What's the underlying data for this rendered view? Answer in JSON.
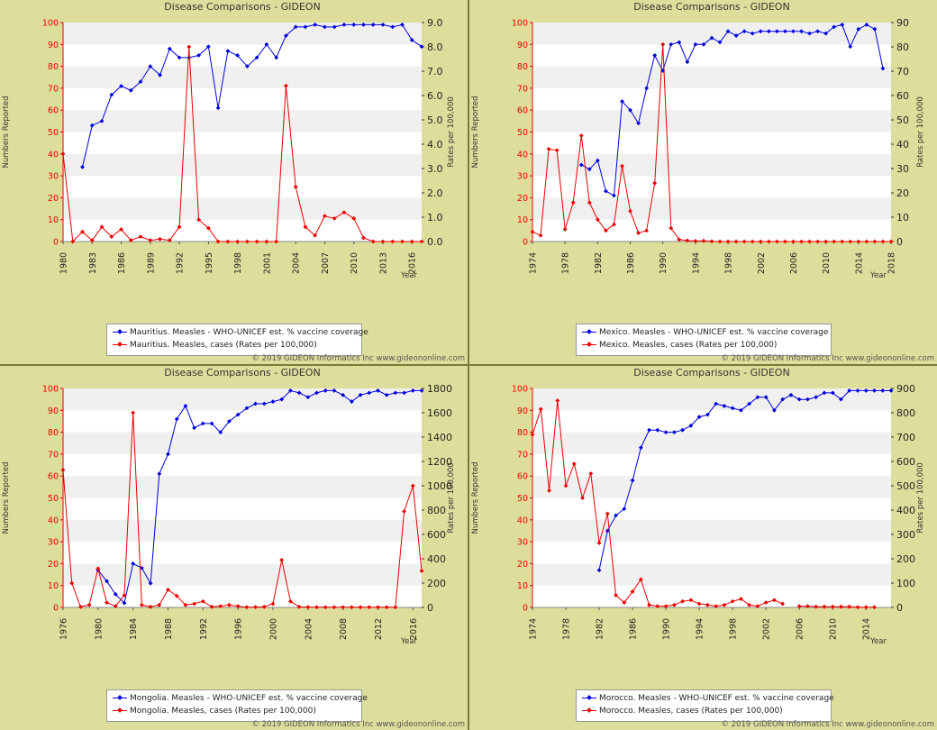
{
  "page": {
    "footer": "© 2019 GIDEON Informatics Inc www.gideononline.com"
  },
  "colors": {
    "coverage": "#0000dd",
    "cases": "#ee0000",
    "panel_bg": "#dede9c",
    "plot_band": "#f0f0f0"
  },
  "chart_data": [
    {
      "type": "line",
      "title": "Disease Comparisons - GIDEON",
      "ylabel_left": "Numbers Reported",
      "ylabel_right": "Rates per 100,000",
      "xlabel": "Year",
      "xlim": [
        1980,
        2017
      ],
      "ylim_left": [
        0,
        100
      ],
      "ylim_right": [
        0,
        9
      ],
      "xticks": [
        1980,
        1983,
        1986,
        1989,
        1992,
        1995,
        1998,
        2001,
        2004,
        2007,
        2010,
        2013,
        2016
      ],
      "yticks_left": [
        0,
        10,
        20,
        30,
        40,
        50,
        60,
        70,
        80,
        90,
        100
      ],
      "yticks_right": [
        "0.0",
        "1.0",
        "2.0",
        "3.0",
        "4.0",
        "5.0",
        "6.0",
        "7.0",
        "8.0",
        "9.0"
      ],
      "series": [
        {
          "name": "Mauritius. Measles - WHO-UNICEF est. % vaccine coverage",
          "axis": "left",
          "x": [
            1982,
            1983,
            1984,
            1985,
            1986,
            1987,
            1988,
            1989,
            1990,
            1991,
            1992,
            1993,
            1994,
            1995,
            1996,
            1997,
            1998,
            1999,
            2000,
            2001,
            2002,
            2003,
            2004,
            2005,
            2006,
            2007,
            2008,
            2009,
            2010,
            2011,
            2012,
            2013,
            2014,
            2015,
            2016,
            2017
          ],
          "y": [
            34,
            53,
            55,
            67,
            71,
            69,
            73,
            80,
            76,
            88,
            84,
            84,
            85,
            89,
            61,
            87,
            85,
            80,
            84,
            90,
            84,
            94,
            98,
            98,
            99,
            98,
            98,
            99,
            99,
            99,
            99,
            99,
            98,
            99,
            92,
            89
          ]
        },
        {
          "name": "Mauritius. Measles, cases (Rates per 100,000)",
          "axis": "right",
          "x": [
            1980,
            1981,
            1982,
            1983,
            1984,
            1985,
            1986,
            1987,
            1988,
            1989,
            1990,
            1991,
            1992,
            1993,
            1994,
            1995,
            1996,
            1997,
            1998,
            1999,
            2000,
            2001,
            2002,
            2003,
            2004,
            2005,
            2006,
            2007,
            2008,
            2009,
            2010,
            2011,
            2012,
            2013,
            2014,
            2015,
            2016,
            2017
          ],
          "y": [
            3.6,
            0.0,
            0.4,
            0.05,
            0.6,
            0.2,
            0.5,
            0.05,
            0.2,
            0.05,
            0.1,
            0.05,
            0.6,
            8.0,
            0.9,
            0.55,
            0.0,
            0.0,
            0.0,
            0.0,
            0.0,
            0.0,
            0.0,
            6.4,
            2.25,
            0.6,
            0.25,
            1.05,
            0.95,
            1.2,
            0.95,
            0.15,
            0.0,
            0.0,
            0.0,
            0.0,
            0.0,
            0.0
          ]
        }
      ]
    },
    {
      "type": "line",
      "title": "Disease Comparisons - GIDEON",
      "ylabel_left": "Numbers Reported",
      "ylabel_right": "Rates per 100,000",
      "xlabel": "Year",
      "xlim": [
        1974,
        2018
      ],
      "ylim_left": [
        0,
        100
      ],
      "ylim_right": [
        0,
        90
      ],
      "xticks": [
        1974,
        1978,
        1982,
        1986,
        1990,
        1994,
        1998,
        2002,
        2006,
        2010,
        2014,
        2018
      ],
      "yticks_left": [
        0,
        10,
        20,
        30,
        40,
        50,
        60,
        70,
        80,
        90,
        100
      ],
      "yticks_right": [
        0,
        10,
        20,
        30,
        40,
        50,
        60,
        70,
        80,
        90
      ],
      "series": [
        {
          "name": "Mexico. Measles - WHO-UNICEF est. % vaccine coverage",
          "axis": "left",
          "x": [
            1980,
            1981,
            1982,
            1983,
            1984,
            1985,
            1986,
            1987,
            1988,
            1989,
            1990,
            1991,
            1992,
            1993,
            1994,
            1995,
            1996,
            1997,
            1998,
            1999,
            2000,
            2001,
            2002,
            2003,
            2004,
            2005,
            2006,
            2007,
            2008,
            2009,
            2010,
            2011,
            2012,
            2013,
            2014,
            2015,
            2016,
            2017
          ],
          "y": [
            35,
            33,
            37,
            23,
            21,
            64,
            60,
            54,
            70,
            85,
            78,
            90,
            91,
            82,
            90,
            90,
            93,
            91,
            96,
            94,
            96,
            95,
            96,
            96,
            96,
            96,
            96,
            96,
            95,
            96,
            95,
            98,
            99,
            89,
            97,
            99,
            97,
            79
          ]
        },
        {
          "name": "Mexico. Measles, cases (Rates per 100,000)",
          "axis": "right",
          "x": [
            1974,
            1975,
            1976,
            1977,
            1978,
            1979,
            1980,
            1981,
            1982,
            1983,
            1984,
            1985,
            1986,
            1987,
            1988,
            1989,
            1990,
            1991,
            1992,
            1993,
            1994,
            1995,
            1996,
            1997,
            1998,
            1999,
            2000,
            2001,
            2002,
            2003,
            2004,
            2005,
            2006,
            2007,
            2008,
            2009,
            2010,
            2011,
            2012,
            2013,
            2014,
            2015,
            2016,
            2017,
            2018
          ],
          "y": [
            4,
            2.5,
            38,
            37.5,
            5,
            16,
            43.5,
            16,
            9,
            4.5,
            7,
            31,
            12.5,
            3.5,
            4.5,
            24,
            81,
            5.5,
            0.8,
            0.4,
            0.2,
            0.3,
            0.1,
            0,
            0,
            0,
            0,
            0,
            0,
            0,
            0,
            0,
            0,
            0,
            0,
            0,
            0,
            0,
            0,
            0,
            0,
            0,
            0,
            0,
            0
          ]
        }
      ]
    },
    {
      "type": "line",
      "title": "Disease Comparisons - GIDEON",
      "ylabel_left": "Numbers Reported",
      "ylabel_right": "Rates per 100,000",
      "xlabel": "Year",
      "xlim": [
        1976,
        2017
      ],
      "ylim_left": [
        0,
        100
      ],
      "ylim_right": [
        0,
        1800
      ],
      "xticks": [
        1976,
        1980,
        1984,
        1988,
        1992,
        1996,
        2000,
        2004,
        2008,
        2012,
        2016
      ],
      "yticks_left": [
        0,
        10,
        20,
        30,
        40,
        50,
        60,
        70,
        80,
        90,
        100
      ],
      "yticks_right": [
        0,
        200,
        400,
        600,
        800,
        1000,
        1200,
        1400,
        1600,
        1800
      ],
      "series": [
        {
          "name": "Mongolia. Measles - WHO-UNICEF est. % vaccine coverage",
          "axis": "left",
          "x": [
            1980,
            1981,
            1982,
            1983,
            1984,
            1985,
            1986,
            1987,
            1988,
            1989,
            1990,
            1991,
            1992,
            1993,
            1994,
            1995,
            1996,
            1997,
            1998,
            1999,
            2000,
            2001,
            2002,
            2003,
            2004,
            2005,
            2006,
            2007,
            2008,
            2009,
            2010,
            2011,
            2012,
            2013,
            2014,
            2015,
            2016,
            2017
          ],
          "y": [
            17,
            12,
            6,
            2,
            20,
            18,
            11,
            61,
            70,
            86,
            92,
            82,
            84,
            84,
            80,
            85,
            88,
            91,
            93,
            93,
            94,
            95,
            99,
            98,
            96,
            98,
            99,
            99,
            97,
            94,
            97,
            98,
            99,
            97,
            98,
            98,
            99,
            99
          ]
        },
        {
          "name": "Mongolia. Measles, cases (Rates per 100,000)",
          "axis": "right",
          "x": [
            1976,
            1977,
            1978,
            1979,
            1980,
            1981,
            1982,
            1983,
            1984,
            1985,
            1986,
            1987,
            1988,
            1989,
            1990,
            1991,
            1992,
            1993,
            1994,
            1995,
            1996,
            1997,
            1998,
            1999,
            2000,
            2001,
            2002,
            2003,
            2004,
            2005,
            2006,
            2007,
            2008,
            2009,
            2010,
            2011,
            2012,
            2013,
            2014,
            2015,
            2016,
            2017
          ],
          "y": [
            1130,
            200,
            5,
            20,
            320,
            40,
            10,
            100,
            1600,
            20,
            5,
            20,
            145,
            95,
            20,
            30,
            50,
            5,
            10,
            20,
            10,
            2,
            3,
            5,
            30,
            390,
            50,
            5,
            3,
            2,
            2,
            2,
            2,
            2,
            2,
            2,
            2,
            2,
            2,
            790,
            1000,
            300
          ]
        }
      ]
    },
    {
      "type": "line",
      "title": "Disease Comparisons - GIDEON",
      "ylabel_left": "Numbers Reported",
      "ylabel_right": "Rates per 100,000",
      "xlabel": "Year",
      "xlim": [
        1974,
        2017
      ],
      "ylim_left": [
        0,
        100
      ],
      "ylim_right": [
        0,
        900
      ],
      "xticks": [
        1974,
        1978,
        1982,
        1986,
        1990,
        1994,
        1998,
        2002,
        2006,
        2010,
        2014
      ],
      "yticks_left": [
        0,
        10,
        20,
        30,
        40,
        50,
        60,
        70,
        80,
        90,
        100
      ],
      "yticks_right": [
        0,
        100,
        200,
        300,
        400,
        500,
        600,
        700,
        800,
        900
      ],
      "series": [
        {
          "name": "Morocco. Measles - WHO-UNICEF est. % vaccine coverage",
          "axis": "left",
          "x": [
            1982,
            1983,
            1984,
            1985,
            1986,
            1987,
            1988,
            1989,
            1990,
            1991,
            1992,
            1993,
            1994,
            1995,
            1996,
            1997,
            1998,
            1999,
            2000,
            2001,
            2002,
            2003,
            2004,
            2005,
            2006,
            2007,
            2008,
            2009,
            2010,
            2011,
            2012,
            2013,
            2014,
            2015,
            2016,
            2017
          ],
          "y": [
            17,
            35,
            42,
            45,
            58,
            73,
            81,
            81,
            80,
            80,
            81,
            83,
            87,
            88,
            93,
            92,
            91,
            90,
            93,
            96,
            96,
            90,
            95,
            97,
            95,
            95,
            96,
            98,
            98,
            95,
            99,
            99,
            99,
            99,
            99,
            99
          ]
        },
        {
          "name": "Morocco. Measles, cases (Rates per 100,000)",
          "axis": "right",
          "x": [
            1974,
            1975,
            1976,
            1977,
            1978,
            1979,
            1980,
            1981,
            1982,
            1983,
            1984,
            1985,
            1986,
            1987,
            1988,
            1989,
            1990,
            1991,
            1992,
            1993,
            1994,
            1995,
            1996,
            1997,
            1998,
            1999,
            2000,
            2001,
            2002,
            2003,
            2004
          ],
          "y": [
            710,
            815,
            480,
            850,
            500,
            590,
            450,
            550,
            265,
            385,
            50,
            20,
            65,
            115,
            10,
            5,
            5,
            10,
            25,
            30,
            15,
            10,
            5,
            10,
            25,
            35,
            10,
            5,
            20,
            30,
            15
          ],
          "x2": [
            2006,
            2007,
            2008,
            2009,
            2010,
            2011,
            2012,
            2013,
            2014,
            2015
          ],
          "y2": [
            5,
            5,
            3,
            3,
            3,
            3,
            3,
            1,
            1,
            1
          ]
        }
      ]
    }
  ]
}
